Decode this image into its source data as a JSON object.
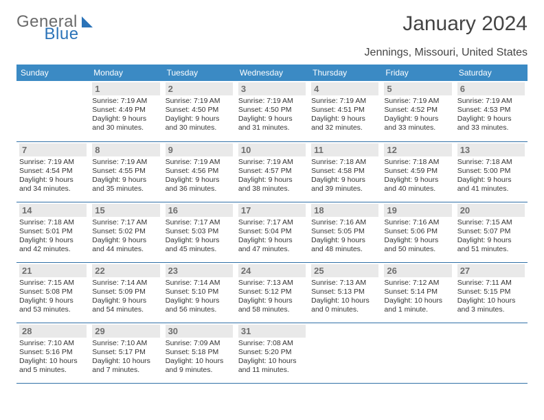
{
  "logo": {
    "word1": "General",
    "word2": "Blue",
    "word1_color": "#6a6a6a",
    "word2_color": "#2b73b8"
  },
  "title": "January 2024",
  "location": "Jennings, Missouri, United States",
  "colors": {
    "header_bg": "#3b8ac4",
    "header_text": "#ffffff",
    "row_border": "#2f6fa6",
    "daynum_bg": "#e9e9e9",
    "daynum_text": "#6e6e6e",
    "body_text": "#333333",
    "page_bg": "#ffffff"
  },
  "typography": {
    "title_fontsize": 30,
    "location_fontsize": 16,
    "header_fontsize": 12,
    "daynum_fontsize": 13,
    "cell_fontsize": 10.5,
    "font_family": "Arial"
  },
  "calendar": {
    "day_headers": [
      "Sunday",
      "Monday",
      "Tuesday",
      "Wednesday",
      "Thursday",
      "Friday",
      "Saturday"
    ],
    "weeks": [
      [
        {
          "day": "",
          "sunrise": "",
          "sunset": "",
          "daylight": ""
        },
        {
          "day": "1",
          "sunrise": "Sunrise: 7:19 AM",
          "sunset": "Sunset: 4:49 PM",
          "daylight": "Daylight: 9 hours and 30 minutes."
        },
        {
          "day": "2",
          "sunrise": "Sunrise: 7:19 AM",
          "sunset": "Sunset: 4:50 PM",
          "daylight": "Daylight: 9 hours and 30 minutes."
        },
        {
          "day": "3",
          "sunrise": "Sunrise: 7:19 AM",
          "sunset": "Sunset: 4:50 PM",
          "daylight": "Daylight: 9 hours and 31 minutes."
        },
        {
          "day": "4",
          "sunrise": "Sunrise: 7:19 AM",
          "sunset": "Sunset: 4:51 PM",
          "daylight": "Daylight: 9 hours and 32 minutes."
        },
        {
          "day": "5",
          "sunrise": "Sunrise: 7:19 AM",
          "sunset": "Sunset: 4:52 PM",
          "daylight": "Daylight: 9 hours and 33 minutes."
        },
        {
          "day": "6",
          "sunrise": "Sunrise: 7:19 AM",
          "sunset": "Sunset: 4:53 PM",
          "daylight": "Daylight: 9 hours and 33 minutes."
        }
      ],
      [
        {
          "day": "7",
          "sunrise": "Sunrise: 7:19 AM",
          "sunset": "Sunset: 4:54 PM",
          "daylight": "Daylight: 9 hours and 34 minutes."
        },
        {
          "day": "8",
          "sunrise": "Sunrise: 7:19 AM",
          "sunset": "Sunset: 4:55 PM",
          "daylight": "Daylight: 9 hours and 35 minutes."
        },
        {
          "day": "9",
          "sunrise": "Sunrise: 7:19 AM",
          "sunset": "Sunset: 4:56 PM",
          "daylight": "Daylight: 9 hours and 36 minutes."
        },
        {
          "day": "10",
          "sunrise": "Sunrise: 7:19 AM",
          "sunset": "Sunset: 4:57 PM",
          "daylight": "Daylight: 9 hours and 38 minutes."
        },
        {
          "day": "11",
          "sunrise": "Sunrise: 7:18 AM",
          "sunset": "Sunset: 4:58 PM",
          "daylight": "Daylight: 9 hours and 39 minutes."
        },
        {
          "day": "12",
          "sunrise": "Sunrise: 7:18 AM",
          "sunset": "Sunset: 4:59 PM",
          "daylight": "Daylight: 9 hours and 40 minutes."
        },
        {
          "day": "13",
          "sunrise": "Sunrise: 7:18 AM",
          "sunset": "Sunset: 5:00 PM",
          "daylight": "Daylight: 9 hours and 41 minutes."
        }
      ],
      [
        {
          "day": "14",
          "sunrise": "Sunrise: 7:18 AM",
          "sunset": "Sunset: 5:01 PM",
          "daylight": "Daylight: 9 hours and 42 minutes."
        },
        {
          "day": "15",
          "sunrise": "Sunrise: 7:17 AM",
          "sunset": "Sunset: 5:02 PM",
          "daylight": "Daylight: 9 hours and 44 minutes."
        },
        {
          "day": "16",
          "sunrise": "Sunrise: 7:17 AM",
          "sunset": "Sunset: 5:03 PM",
          "daylight": "Daylight: 9 hours and 45 minutes."
        },
        {
          "day": "17",
          "sunrise": "Sunrise: 7:17 AM",
          "sunset": "Sunset: 5:04 PM",
          "daylight": "Daylight: 9 hours and 47 minutes."
        },
        {
          "day": "18",
          "sunrise": "Sunrise: 7:16 AM",
          "sunset": "Sunset: 5:05 PM",
          "daylight": "Daylight: 9 hours and 48 minutes."
        },
        {
          "day": "19",
          "sunrise": "Sunrise: 7:16 AM",
          "sunset": "Sunset: 5:06 PM",
          "daylight": "Daylight: 9 hours and 50 minutes."
        },
        {
          "day": "20",
          "sunrise": "Sunrise: 7:15 AM",
          "sunset": "Sunset: 5:07 PM",
          "daylight": "Daylight: 9 hours and 51 minutes."
        }
      ],
      [
        {
          "day": "21",
          "sunrise": "Sunrise: 7:15 AM",
          "sunset": "Sunset: 5:08 PM",
          "daylight": "Daylight: 9 hours and 53 minutes."
        },
        {
          "day": "22",
          "sunrise": "Sunrise: 7:14 AM",
          "sunset": "Sunset: 5:09 PM",
          "daylight": "Daylight: 9 hours and 54 minutes."
        },
        {
          "day": "23",
          "sunrise": "Sunrise: 7:14 AM",
          "sunset": "Sunset: 5:10 PM",
          "daylight": "Daylight: 9 hours and 56 minutes."
        },
        {
          "day": "24",
          "sunrise": "Sunrise: 7:13 AM",
          "sunset": "Sunset: 5:12 PM",
          "daylight": "Daylight: 9 hours and 58 minutes."
        },
        {
          "day": "25",
          "sunrise": "Sunrise: 7:13 AM",
          "sunset": "Sunset: 5:13 PM",
          "daylight": "Daylight: 10 hours and 0 minutes."
        },
        {
          "day": "26",
          "sunrise": "Sunrise: 7:12 AM",
          "sunset": "Sunset: 5:14 PM",
          "daylight": "Daylight: 10 hours and 1 minute."
        },
        {
          "day": "27",
          "sunrise": "Sunrise: 7:11 AM",
          "sunset": "Sunset: 5:15 PM",
          "daylight": "Daylight: 10 hours and 3 minutes."
        }
      ],
      [
        {
          "day": "28",
          "sunrise": "Sunrise: 7:10 AM",
          "sunset": "Sunset: 5:16 PM",
          "daylight": "Daylight: 10 hours and 5 minutes."
        },
        {
          "day": "29",
          "sunrise": "Sunrise: 7:10 AM",
          "sunset": "Sunset: 5:17 PM",
          "daylight": "Daylight: 10 hours and 7 minutes."
        },
        {
          "day": "30",
          "sunrise": "Sunrise: 7:09 AM",
          "sunset": "Sunset: 5:18 PM",
          "daylight": "Daylight: 10 hours and 9 minutes."
        },
        {
          "day": "31",
          "sunrise": "Sunrise: 7:08 AM",
          "sunset": "Sunset: 5:20 PM",
          "daylight": "Daylight: 10 hours and 11 minutes."
        },
        {
          "day": "",
          "sunrise": "",
          "sunset": "",
          "daylight": ""
        },
        {
          "day": "",
          "sunrise": "",
          "sunset": "",
          "daylight": ""
        },
        {
          "day": "",
          "sunrise": "",
          "sunset": "",
          "daylight": ""
        }
      ]
    ]
  }
}
